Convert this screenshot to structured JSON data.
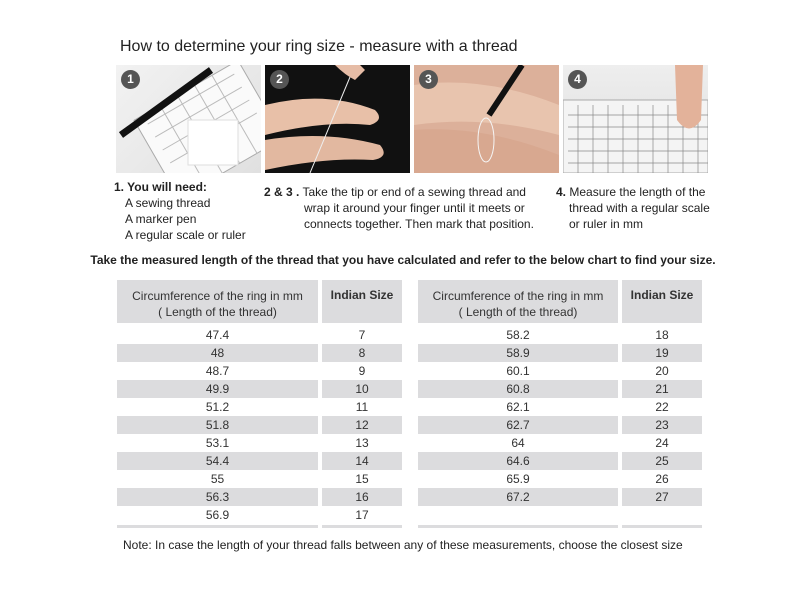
{
  "title": "How to determine your ring size - measure with a thread",
  "photos": [
    {
      "badge": "1"
    },
    {
      "badge": "2"
    },
    {
      "badge": "3"
    },
    {
      "badge": "4"
    }
  ],
  "steps": {
    "step1": {
      "heading": "1. You will need:",
      "items": [
        "A sewing thread",
        "A marker pen",
        "A regular scale or ruler"
      ]
    },
    "step23": {
      "label": "2 & 3 .",
      "text": "Take the tip or end of a sewing thread and",
      "line2": "wrap it around your finger until it meets or",
      "line3": "connects together. Then mark that position."
    },
    "step4": {
      "label": "4.",
      "text": "Measure the length of the",
      "line2": "thread with a regular scale",
      "line3": "or ruler in mm"
    }
  },
  "instruction": "Take the measured length of the thread that you have calculated and refer to the below chart to find your size.",
  "table_headers": {
    "circ_line1": "Circumference of the ring in mm",
    "circ_line2": "( Length of the thread)",
    "size": "Indian Size"
  },
  "left_table": [
    [
      "47.4",
      "7"
    ],
    [
      "48",
      "8"
    ],
    [
      "48.7",
      "9"
    ],
    [
      "49.9",
      "10"
    ],
    [
      "51.2",
      "11"
    ],
    [
      "51.8",
      "12"
    ],
    [
      "53.1",
      "13"
    ],
    [
      "54.4",
      "14"
    ],
    [
      "55",
      "15"
    ],
    [
      "56.3",
      "16"
    ],
    [
      "56.9",
      "17"
    ]
  ],
  "right_table": [
    [
      "58.2",
      "18"
    ],
    [
      "58.9",
      "19"
    ],
    [
      "60.1",
      "20"
    ],
    [
      "60.8",
      "21"
    ],
    [
      "62.1",
      "22"
    ],
    [
      "62.7",
      "23"
    ],
    [
      "64",
      "24"
    ],
    [
      "64.6",
      "25"
    ],
    [
      "65.9",
      "26"
    ],
    [
      "67.2",
      "27"
    ]
  ],
  "note": "Note: In case the length of your thread falls between any of these measurements, choose the closest size"
}
